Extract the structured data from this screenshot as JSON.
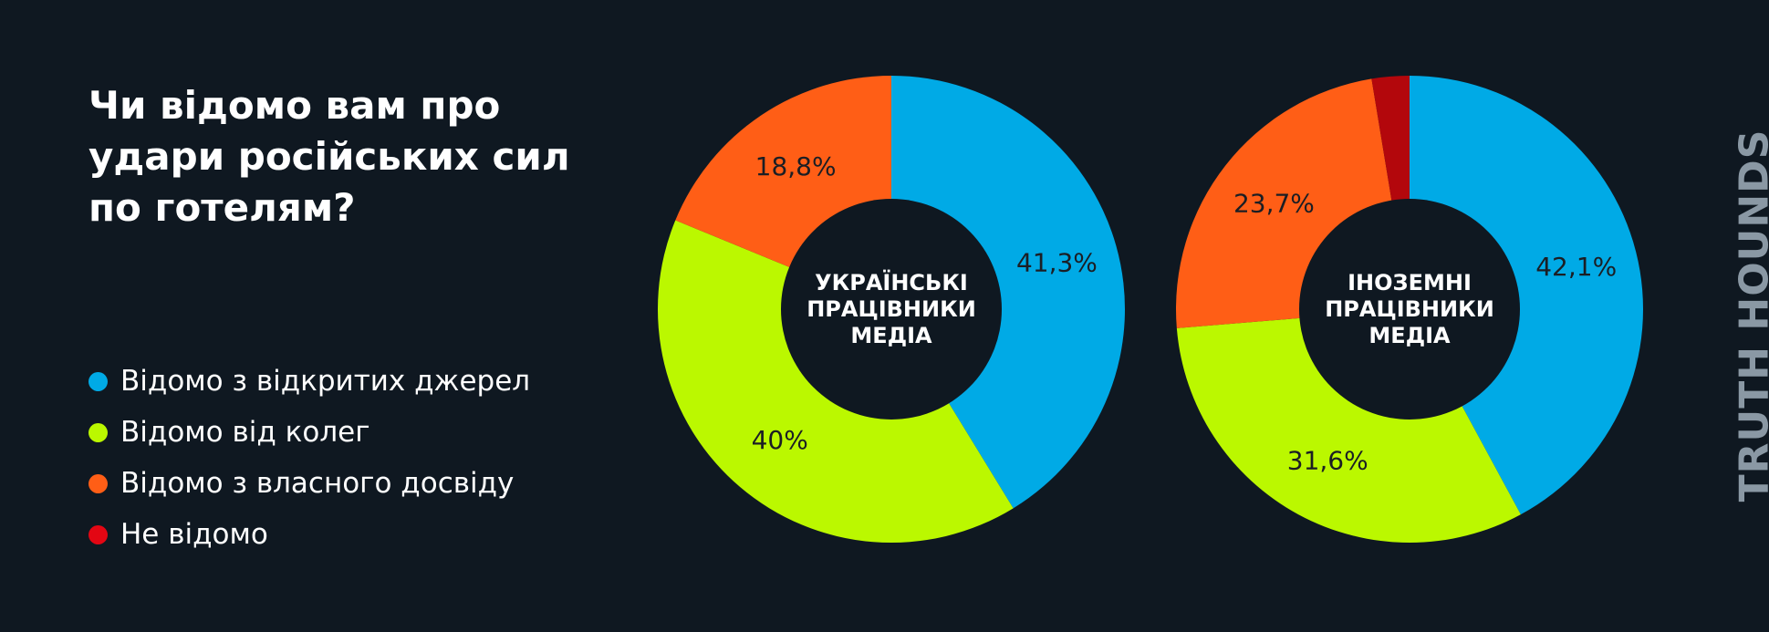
{
  "title_lines": [
    "Чи відомо вам про",
    "удари російських сил",
    "по готелям?"
  ],
  "legend": [
    {
      "label": "Відомо з відкритих джерел",
      "color": "#00aae6"
    },
    {
      "label": "Відомо від колег",
      "color": "#bbf800"
    },
    {
      "label": "Відомо з власного досвіду",
      "color": "#ff5e16"
    },
    {
      "label": "Не відомо",
      "color": "#e30613"
    }
  ],
  "brand": "TRUTH HOUNDS",
  "chart_data": [
    {
      "type": "pie",
      "center_label": [
        "УКРАЇНСЬКІ",
        "ПРАЦІВНИКИ",
        "МЕДІА"
      ],
      "slices": [
        {
          "category": "Відомо з відкритих джерел",
          "value": 41.3,
          "label": "41,3%",
          "color": "#00aae6"
        },
        {
          "category": "Відомо від колег",
          "value": 40.0,
          "label": "40%",
          "color": "#bbf800"
        },
        {
          "category": "Відомо з власного досвіду",
          "value": 18.8,
          "label": "18,8%",
          "color": "#ff5e16"
        }
      ]
    },
    {
      "type": "pie",
      "center_label": [
        "ІНОЗЕМНІ",
        "ПРАЦІВНИКИ",
        "МЕДІА"
      ],
      "slices": [
        {
          "category": "Відомо з відкритих джерел",
          "value": 42.1,
          "label": "42,1%",
          "color": "#00aae6"
        },
        {
          "category": "Відомо від колег",
          "value": 31.6,
          "label": "31,6%",
          "color": "#bbf800"
        },
        {
          "category": "Відомо з власного досвіду",
          "value": 23.7,
          "label": "23,7%",
          "color": "#ff5e16"
        },
        {
          "category": "Не відомо",
          "value": 2.6,
          "label": "",
          "color": "#b3070c"
        }
      ]
    }
  ]
}
